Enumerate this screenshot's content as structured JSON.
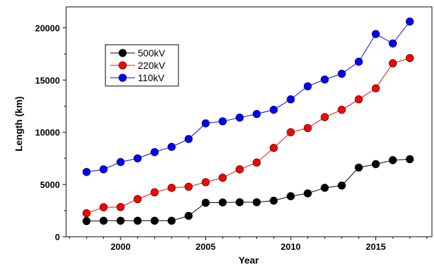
{
  "chart_data": {
    "type": "line",
    "title": "",
    "xlabel": "Year",
    "ylabel": "Length (km)",
    "xlim": [
      1996.8,
      2018.3
    ],
    "ylim": [
      0,
      22000
    ],
    "x_ticks": [
      2000,
      2005,
      2010,
      2015
    ],
    "y_ticks": [
      0,
      5000,
      10000,
      15000,
      20000
    ],
    "grid": false,
    "legend_position": "upper-left",
    "x": [
      1998,
      1999,
      2000,
      2001,
      2002,
      2003,
      2004,
      2005,
      2006,
      2007,
      2008,
      2009,
      2010,
      2011,
      2012,
      2013,
      2014,
      2015,
      2016,
      2017
    ],
    "series": [
      {
        "name": "500kV",
        "color": "#000000",
        "values": [
          1500,
          1530,
          1530,
          1530,
          1530,
          1530,
          2000,
          3250,
          3280,
          3300,
          3300,
          3450,
          3880,
          4150,
          4680,
          4900,
          6620,
          6950,
          7330,
          7420
        ]
      },
      {
        "name": "220kV",
        "color": "#ff0000",
        "values": [
          2250,
          2820,
          2840,
          3600,
          4250,
          4680,
          4780,
          5220,
          5650,
          6450,
          7100,
          8500,
          10000,
          10400,
          11450,
          12150,
          13150,
          14200,
          16600,
          17100
        ]
      },
      {
        "name": "110kV",
        "color": "#0000ff",
        "values": [
          6200,
          6450,
          7150,
          7500,
          8100,
          8600,
          9350,
          10850,
          11050,
          11400,
          11750,
          12150,
          13150,
          14400,
          15050,
          15600,
          16750,
          19400,
          18500,
          20600
        ]
      }
    ]
  }
}
